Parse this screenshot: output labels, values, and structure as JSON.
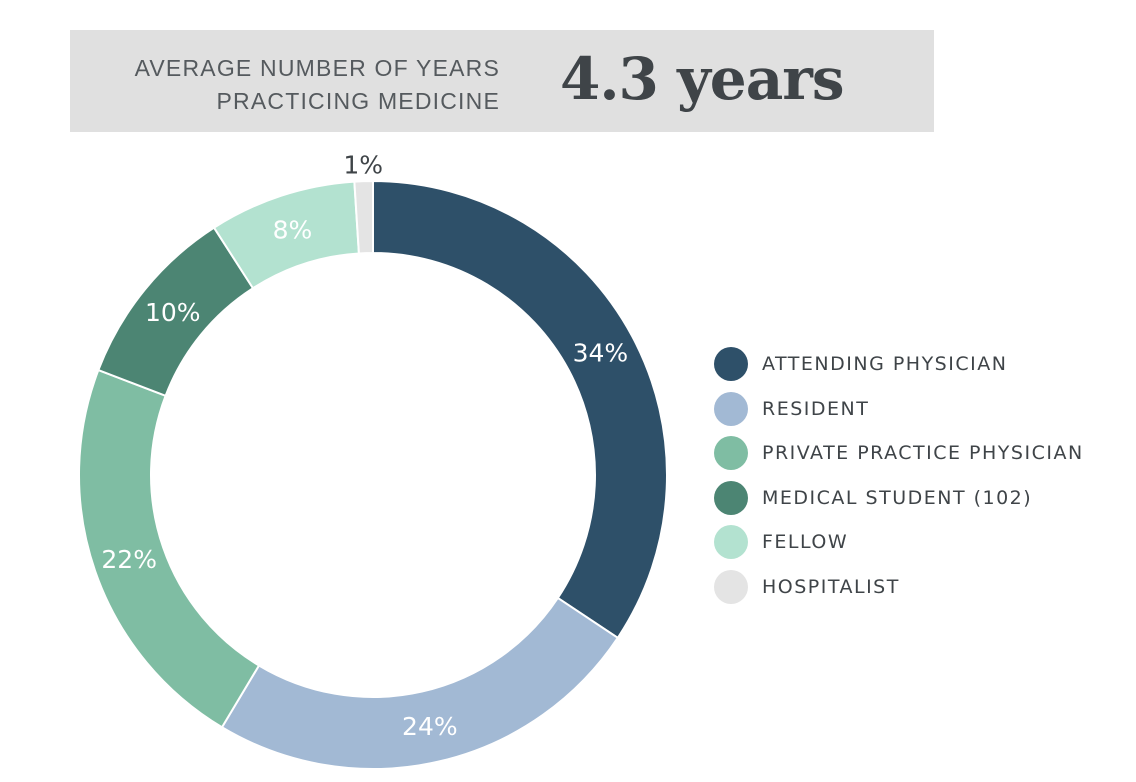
{
  "stat": {
    "label_line1": "AVERAGE NUMBER OF YEARS",
    "label_line2": "PRACTICING MEDICINE",
    "value": "4.3 years"
  },
  "chart_data": {
    "type": "pie",
    "variant": "donut",
    "slices": [
      {
        "label": "ATTENDING PHYSICIAN",
        "value": 34,
        "display": "34%",
        "color": "#2e5069",
        "label_color": "#ffffff"
      },
      {
        "label": "RESIDENT",
        "value": 24,
        "display": "24%",
        "color": "#a2b9d4",
        "label_color": "#ffffff"
      },
      {
        "label": "PRIVATE PRACTICE PHYSICIAN",
        "value": 22,
        "display": "22%",
        "color": "#7fbda3",
        "label_color": "#ffffff"
      },
      {
        "label": "MEDICAL STUDENT (102)",
        "value": 10,
        "display": "10%",
        "color": "#4c8573",
        "label_color": "#ffffff"
      },
      {
        "label": "FELLOW",
        "value": 8,
        "display": "8%",
        "color": "#b3e2d0",
        "label_color": "#ffffff"
      },
      {
        "label": "HOSPITALIST",
        "value": 1,
        "display": "1%",
        "color": "#e4e4e4",
        "label_color": "#3f4448"
      }
    ],
    "legend_position": "right"
  }
}
